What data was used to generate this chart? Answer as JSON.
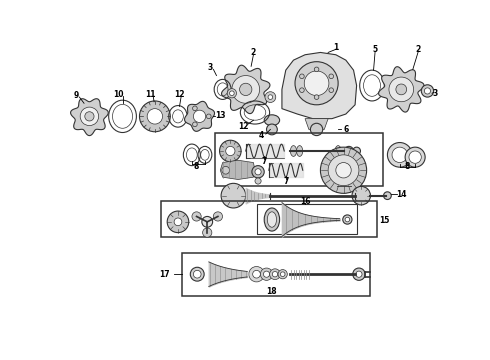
{
  "bg_color": "#ffffff",
  "fig_width": 4.9,
  "fig_height": 3.6,
  "dpi": 100,
  "gray": "#333333",
  "lightgray": "#888888",
  "fillgray": "#cccccc",
  "darkfill": "#aaaaaa"
}
